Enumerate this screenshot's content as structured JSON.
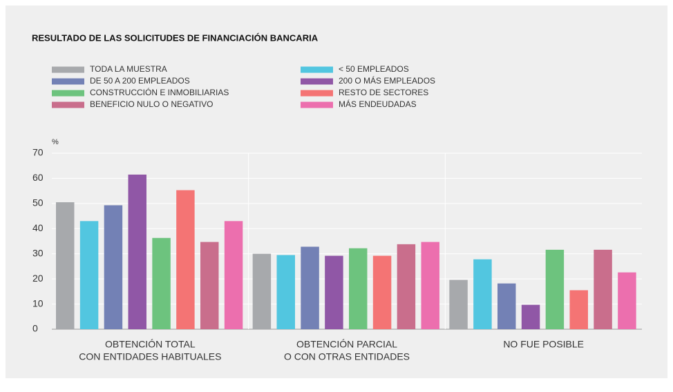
{
  "chart_data": {
    "type": "bar",
    "title": "RESULTADO DE LAS SOLICITUDES DE FINANCIACIÓN BANCARIA",
    "y_label": "%",
    "categories": [
      [
        "OBTENCIÓN TOTAL",
        "CON ENTIDADES HABITUALES"
      ],
      [
        "OBTENCIÓN PARCIAL",
        "O CON OTRAS ENTIDADES"
      ],
      [
        "NO FUE POSIBLE"
      ]
    ],
    "series": [
      {
        "name": "TODA LA MUESTRA",
        "color": "#a7a9ac",
        "values": [
          50.5,
          30,
          19.6
        ]
      },
      {
        "name": "< 50 EMPLEADOS",
        "color": "#52c6e0",
        "values": [
          43,
          29.5,
          27.8
        ]
      },
      {
        "name": "DE 50 A 200 EMPLEADOS",
        "color": "#7381b5",
        "values": [
          49.3,
          32.8,
          18.2
        ]
      },
      {
        "name": "200 O MÁS EMPLEADOS",
        "color": "#9057a6",
        "values": [
          61.5,
          29.2,
          9.7
        ]
      },
      {
        "name": "CONSTRUCCIÓN E INMOBILIARIAS",
        "color": "#6dc37e",
        "values": [
          36.3,
          32.2,
          31.6
        ]
      },
      {
        "name": "RESTO DE SECTORES",
        "color": "#f47474",
        "values": [
          55.3,
          29.2,
          15.5
        ]
      },
      {
        "name": "BENEFICIO NULO O NEGATIVO",
        "color": "#c96e8c",
        "values": [
          34.7,
          33.8,
          31.6
        ]
      },
      {
        "name": "MÁS ENDEUDADAS",
        "color": "#ec6fae",
        "values": [
          43,
          34.7,
          22.6
        ]
      }
    ],
    "ylim": [
      0,
      70
    ],
    "yticks": [
      0,
      10,
      20,
      30,
      40,
      50,
      60,
      70
    ],
    "grid": true
  }
}
